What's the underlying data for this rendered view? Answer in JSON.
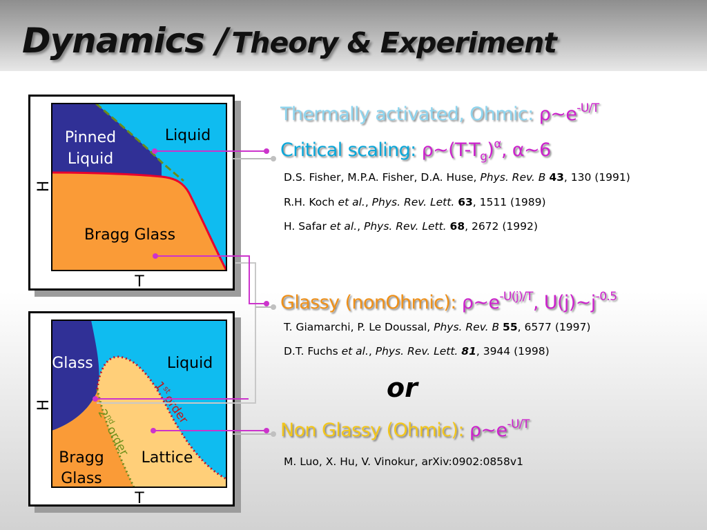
{
  "title": {
    "main": "Dynamics /",
    "sub": "Theory & Experiment"
  },
  "diagram_top": {
    "region_pinned_liquid_line1": "Pinned",
    "region_pinned_liquid_line2": "Liquid",
    "region_liquid": "Liquid",
    "region_bragg_glass": "Bragg Glass",
    "axis_x": "T",
    "axis_y": "H"
  },
  "diagram_bottom": {
    "region_glass": "Glass",
    "region_liquid": "Liquid",
    "region_bragg_glass_line1": "Bragg",
    "region_bragg_glass_line2": "Glass",
    "region_lattice": "Lattice",
    "first_order_sup": "st",
    "first_order_text": "order",
    "second_order_sup": "nd",
    "second_order_text": "order",
    "axis_x": "T",
    "axis_y": "H"
  },
  "items": {
    "thermal": {
      "label": "Thermally activated, Ohmic: ",
      "formula": "ρ~e",
      "exp": "-U/T"
    },
    "critical": {
      "label": "Critical scaling: ",
      "formula_pre": "ρ~(T-T",
      "formula_sub": "g",
      "formula_mid": ")",
      "formula_exp": "α",
      "formula_post": ", α~6"
    },
    "glassy": {
      "label": "Glassy (nonOhmic): ",
      "formula_pre": "ρ~e",
      "exp1": "-U(j)/T",
      "formula_mid": ", U(j)~j",
      "exp2": "-0.5"
    },
    "nonglassy": {
      "label": "Non Glassy (Ohmic): ",
      "formula": "ρ~e",
      "exp": "-U/T"
    }
  },
  "or_word": "or",
  "references": {
    "critical": [
      {
        "authors": "D.S. Fisher, M.P.A. Fisher, D.A. Huse, ",
        "etal": "",
        "journal": "Phys. Rev. B",
        "volume": "43",
        "rest": ", 130 (1991)"
      },
      {
        "authors": "R.H. Koch ",
        "etal": "et al.",
        "journal": "Phys. Rev. Lett.",
        "volume": "63",
        "rest": ", 1511 (1989)"
      },
      {
        "authors": "H. Safar ",
        "etal": "et al.",
        "journal": "Phys. Rev. Lett.",
        "volume": "68",
        "rest": ", 2672 (1992)"
      }
    ],
    "glassy": [
      {
        "authors": "T. Giamarchi, P. Le Doussal, ",
        "journal": "Phys. Rev. B",
        "volume": "55",
        "rest": ", 6577 (1997)"
      },
      {
        "authors": "D.T. Fuchs ",
        "etal": "et al.",
        "journal": "Phys. Rev. Lett.",
        "volume": "81",
        "rest": ", 3944 (1998)"
      }
    ],
    "nonglassy": "M. Luo, X. Hu, V. Vinokur, arXiv:0902:0858v1"
  },
  "colors": {
    "liquid": "#0fbcf0",
    "bragg_glass": "#fa9b37",
    "pinned_liquid": "#303096",
    "lattice": "#ffcf79",
    "transition_line": "#e8002e",
    "dotted_line": "#6b8a1c",
    "connector": "#cc33cc",
    "connector_gray": "#b8b8b8",
    "text_thermal": "#8ed5ef",
    "text_critical": "#0aa7d9",
    "text_glassy": "#ef9019",
    "text_nonglassy": "#f3c61a",
    "formula": "#cc22cc",
    "first_order_label": "#c01818",
    "second_order_label": "#6f8f1a"
  }
}
